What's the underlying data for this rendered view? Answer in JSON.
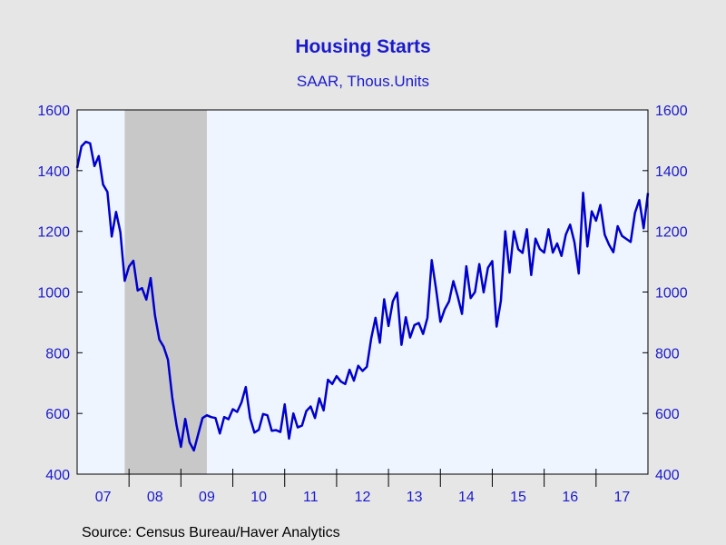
{
  "header": {
    "title": "Housing Starts",
    "subtitle": "SAAR, Thous.Units"
  },
  "footer": {
    "source": "Source:  Census Bureau/Haver Analytics"
  },
  "colors": {
    "line": "#0000cc",
    "plot_bg": "#eef5ff",
    "recession": "#c8c8c8",
    "text": "#1a1acc"
  },
  "chart_data": {
    "type": "line",
    "title": "Housing Starts",
    "subtitle": "SAAR, Thous.Units",
    "xlabel": "",
    "ylabel": "",
    "ylim": [
      400,
      1600
    ],
    "yticks": [
      400,
      600,
      800,
      1000,
      1200,
      1400,
      1600
    ],
    "ytick_labels": [
      "400",
      "600",
      "800",
      "1000",
      "1200",
      "1400",
      "1600"
    ],
    "x_start": "2007-01",
    "x_end": "2017-12",
    "xtick_labels": [
      "07",
      "08",
      "09",
      "10",
      "11",
      "12",
      "13",
      "14",
      "15",
      "16",
      "17"
    ],
    "right_axis": true,
    "grid": false,
    "legend": "none",
    "recession_shading": [
      {
        "start": "2007-12",
        "end": "2009-06"
      }
    ],
    "series": [
      {
        "values": [
          1409,
          1480,
          1495,
          1490,
          1415,
          1448,
          1354,
          1330,
          1183,
          1264,
          1197,
          1037,
          1084,
          1103,
          1005,
          1013,
          975,
          1046,
          923,
          844,
          820,
          777,
          652,
          560,
          490,
          582,
          505,
          478,
          532,
          585,
          594,
          588,
          585,
          534,
          588,
          581,
          614,
          605,
          636,
          687,
          585,
          537,
          546,
          598,
          594,
          543,
          545,
          539,
          630,
          517,
          600,
          554,
          560,
          608,
          623,
          585,
          650,
          610,
          711,
          697,
          723,
          705,
          697,
          744,
          708,
          757,
          740,
          754,
          847,
          915,
          833,
          976,
          888,
          969,
          998,
          826,
          917,
          850,
          891,
          898,
          862,
          915,
          1105,
          1010,
          902,
          943,
          969,
          1036,
          986,
          928,
          1085,
          980,
          1000,
          1092,
          999,
          1080,
          1102,
          886,
          972,
          1200,
          1064,
          1200,
          1141,
          1129,
          1207,
          1056,
          1176,
          1142,
          1130,
          1207,
          1130,
          1160,
          1119,
          1189,
          1222,
          1164,
          1061,
          1327,
          1150,
          1266,
          1235,
          1287,
          1189,
          1156,
          1131,
          1217,
          1185,
          1175,
          1165,
          1261,
          1303,
          1210,
          1326
        ]
      }
    ]
  }
}
